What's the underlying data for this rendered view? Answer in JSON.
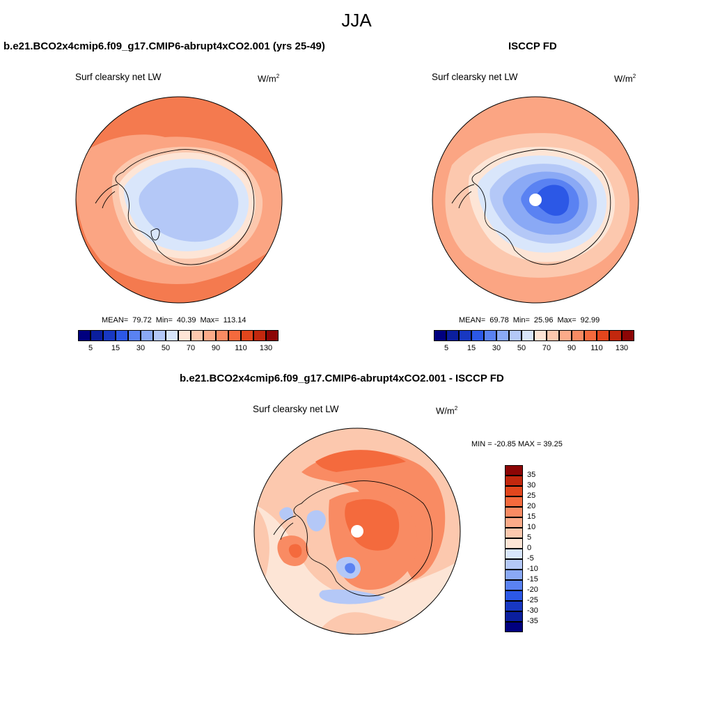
{
  "title": "JJA",
  "panels": [
    {
      "title": "b.e21.BCO2x4cmip6.f09_g17.CMIP6-abrupt4xCO2.001 (yrs 25-49)",
      "variable": "Surf clearsky net LW",
      "units_base": "W/m",
      "units_exp": "2",
      "stats": {
        "mean_label": "MEAN=",
        "mean": "79.72",
        "min_label": "Min=",
        "min": "40.39",
        "max_label": "Max=",
        "max": "113.14"
      }
    },
    {
      "title": "ISCCP FD",
      "variable": "Surf clearsky net LW",
      "units_base": "W/m",
      "units_exp": "2",
      "stats": {
        "mean_label": "MEAN=",
        "mean": "69.78",
        "min_label": "Min=",
        "min": "25.96",
        "max_label": "Max=",
        "max": "92.99"
      }
    },
    {
      "title": "b.e21.BCO2x4cmip6.f09_g17.CMIP6-abrupt4xCO2.001 - ISCCP FD",
      "variable": "Surf clearsky net LW",
      "units_base": "W/m",
      "units_exp": "2",
      "minmax": "MIN = -20.85 MAX =  39.25"
    }
  ],
  "colorbar_top": {
    "colors": [
      "#00007f",
      "#0b1f9e",
      "#1838c2",
      "#2c58e6",
      "#5a82f2",
      "#8aa9f5",
      "#b4c8f7",
      "#d9e6fb",
      "#fde5d6",
      "#fcc8ae",
      "#fbab89",
      "#f98b63",
      "#f46a3d",
      "#e2461d",
      "#c2280e",
      "#8c0505"
    ],
    "ticks": [
      "5",
      "15",
      "30",
      "50",
      "70",
      "90",
      "110",
      "130"
    ]
  },
  "colorbar_diff": {
    "colors": [
      "#00007f",
      "#0b1f9e",
      "#1838c2",
      "#2c58e6",
      "#5a82f2",
      "#8aa9f5",
      "#b4c8f7",
      "#d9e6fb",
      "#fde5d6",
      "#fcc8ae",
      "#fbab89",
      "#f98b63",
      "#f46a3d",
      "#e2461d",
      "#c2280e",
      "#8c0505"
    ],
    "ticks": [
      "35",
      "30",
      "25",
      "20",
      "15",
      "10",
      "5",
      "0",
      "-5",
      "-10",
      "-15",
      "-20",
      "-25",
      "-30",
      "-35"
    ]
  },
  "field_colors": {
    "ocean_warm": "#f47a4f",
    "ocean_mid": "#fba583",
    "ocean_pale": "#fcc8ae",
    "ice_edge": "#fde5d6",
    "land_pale": "#d9e6fb",
    "land_light": "#b4c8f7",
    "land_mid": "#8aa9f5",
    "land_dark": "#5a82f2",
    "land_deep": "#2c58e6",
    "diff_pos_light": "#fcc8ae",
    "diff_pos": "#f98b63",
    "diff_pos_strong": "#f46a3d",
    "diff_neutral": "#fde5d6",
    "diff_neg": "#b4c8f7",
    "diff_neg_strong": "#5a82f2"
  }
}
